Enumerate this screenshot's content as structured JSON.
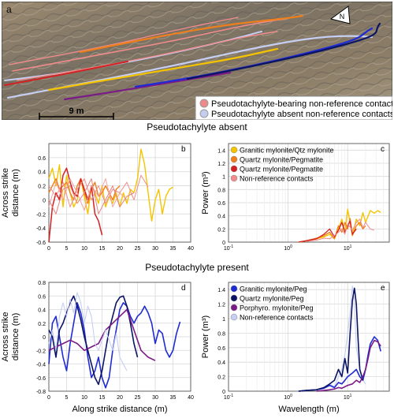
{
  "panel_a": {
    "letter": "a",
    "scale_label": "9 m",
    "legend": [
      {
        "label": "Pseudotachylyte-bearing  non-reference contacts",
        "color": "#ef8a8a"
      },
      {
        "label": "Pseudotachylyte absent non-reference contacts",
        "color": "#c4cdf0"
      }
    ],
    "north_icon": "north-arrow-icon",
    "north_label": "N"
  },
  "captions": {
    "absent": "Pseudotachylyte absent",
    "present": "Pseudotachylyte present"
  },
  "chart_data": [
    {
      "panel": "b",
      "type": "line",
      "xlabel": "",
      "ylabel": "Across strike distance (m)",
      "xlim": [
        0,
        40
      ],
      "ylim": [
        -0.6,
        0.8
      ],
      "xticks": [
        "0",
        "5",
        "10",
        "15",
        "20",
        "25",
        "30",
        "35",
        "40"
      ],
      "yticks": [
        "-0.6",
        "-0.4",
        "-0.2",
        "0",
        "0.2",
        "0.4",
        "0.6"
      ],
      "grid": true,
      "series": [
        {
          "color": "#f5c400",
          "width": 1.4,
          "x": [
            0,
            1,
            2,
            3,
            4,
            5,
            6,
            7,
            8,
            9,
            10,
            11,
            12,
            13,
            14,
            15,
            16,
            17,
            18,
            19,
            20,
            21,
            22,
            23,
            24,
            25,
            26,
            27,
            28,
            29,
            30,
            31,
            32,
            33,
            34,
            35
          ],
          "y": [
            0.3,
            0.45,
            0.2,
            0.5,
            -0.1,
            0.35,
            0.1,
            -0.1,
            0.0,
            0.3,
            0.05,
            -0.2,
            0.2,
            0.1,
            -0.05,
            0.2,
            -0.1,
            0.05,
            -0.05,
            0.1,
            -0.1,
            0.1,
            -0.05,
            0.15,
            0.1,
            0.3,
            0.72,
            0.5,
            0.1,
            -0.3,
            0.0,
            0.15,
            -0.2,
            0.05,
            0.15,
            0.18
          ]
        },
        {
          "color": "#ee7f1d",
          "width": 1.4,
          "x": [
            0,
            1,
            2,
            3,
            4,
            5,
            6,
            7,
            8,
            9,
            10,
            11,
            12,
            13,
            14,
            15,
            16,
            17,
            18,
            19,
            20
          ],
          "y": [
            0.1,
            0.2,
            0.3,
            0.15,
            0.2,
            0.25,
            0.1,
            0.0,
            0.2,
            0.3,
            0.1,
            -0.05,
            0.15,
            0.25,
            0.05,
            0.1,
            0.2,
            0.1,
            0.0,
            0.15,
            0.2
          ]
        },
        {
          "color": "#d42020",
          "width": 1.5,
          "x": [
            0,
            1,
            2,
            3,
            4,
            5,
            6,
            7,
            8,
            9,
            10,
            11,
            12,
            13,
            14,
            15
          ],
          "y": [
            -0.6,
            -0.1,
            0.1,
            0.0,
            0.35,
            0.45,
            0.25,
            0.1,
            0.05,
            0.3,
            0.15,
            0.0,
            0.2,
            -0.2,
            -0.3,
            -0.5
          ]
        },
        {
          "color": "#f08c8c",
          "width": 1.0,
          "x": [
            0,
            2,
            4,
            6,
            8,
            10,
            12,
            14,
            16,
            18,
            20,
            22,
            24,
            26,
            28
          ],
          "y": [
            0.2,
            0.05,
            0.25,
            -0.1,
            0.15,
            0.3,
            0.0,
            0.2,
            -0.05,
            0.15,
            0.1,
            0.25,
            0.0,
            0.35,
            0.18
          ]
        },
        {
          "color": "#f3a3a3",
          "width": 1.0,
          "x": [
            0,
            2,
            4,
            6,
            8,
            10,
            12,
            14,
            16,
            18,
            20,
            22
          ],
          "y": [
            -0.1,
            0.25,
            0.0,
            0.3,
            0.1,
            -0.15,
            0.2,
            0.05,
            0.3,
            -0.1,
            0.1,
            0.0
          ]
        },
        {
          "color": "#e98080",
          "width": 1.0,
          "x": [
            0,
            2,
            4,
            6,
            8,
            10,
            12,
            14,
            16,
            18,
            20,
            22,
            24
          ],
          "y": [
            0.0,
            -0.2,
            0.15,
            0.2,
            -0.05,
            0.1,
            0.3,
            -0.2,
            0.0,
            0.2,
            -0.1,
            0.05,
            0.1
          ]
        }
      ]
    },
    {
      "panel": "c",
      "type": "line",
      "xlabel": "",
      "ylabel": "Power (m³)",
      "xscale": "log",
      "xlim": [
        0.1,
        50
      ],
      "ylim": [
        0,
        1.5
      ],
      "yticks": [
        "0",
        "0.2",
        "0.4",
        "0.6",
        "0.8",
        "1",
        "1.2",
        "1.4"
      ],
      "grid": true,
      "legend": [
        {
          "label": "Granitic mylonite/Qtz mylonite",
          "color": "#f5c400"
        },
        {
          "label": "Quartz mylonite/Pegmatite",
          "color": "#ee7f1d"
        },
        {
          "label": "Quartz mylonite/Pegmatite",
          "color": "#d42020"
        },
        {
          "label": "Non-reference contacts",
          "color": "#f08c8c"
        }
      ],
      "series": [
        {
          "color": "#f5c400",
          "width": 1.4,
          "x": [
            1.5,
            2,
            3,
            4,
            5,
            6,
            7,
            8,
            9,
            10,
            11,
            12,
            14,
            16,
            18,
            20,
            24,
            28,
            32,
            36
          ],
          "y": [
            0,
            0.02,
            0.05,
            0.08,
            0.12,
            0.05,
            0.2,
            0.35,
            0.15,
            0.5,
            0.3,
            0.1,
            0.35,
            0.25,
            0.45,
            0.3,
            0.48,
            0.44,
            0.48,
            0.45
          ]
        },
        {
          "color": "#ee7f1d",
          "width": 1.3,
          "x": [
            1.5,
            2,
            3,
            4,
            5,
            6,
            7,
            8,
            9,
            10,
            11,
            12,
            14,
            16,
            18,
            20
          ],
          "y": [
            0,
            0.02,
            0.06,
            0.1,
            0.15,
            0.05,
            0.25,
            0.15,
            0.3,
            0.2,
            0.36,
            0.1,
            0.25,
            0.3,
            0.2,
            0.25
          ]
        },
        {
          "color": "#d42020",
          "width": 1.3,
          "x": [
            1.5,
            2,
            3,
            4,
            5,
            6,
            7,
            8,
            9,
            10,
            11,
            12,
            14
          ],
          "y": [
            0,
            0.02,
            0.05,
            0.12,
            0.2,
            0.08,
            0.18,
            0.3,
            0.15,
            0.25,
            0.32,
            0.12,
            0.2
          ]
        },
        {
          "color": "#f08c8c",
          "width": 1.0,
          "x": [
            2,
            3,
            4,
            5,
            6,
            7,
            8,
            9,
            10,
            12,
            14,
            16,
            18,
            20,
            24,
            28
          ],
          "y": [
            0.01,
            0.03,
            0.06,
            0.05,
            0.1,
            0.15,
            0.2,
            0.12,
            0.28,
            0.18,
            0.3,
            0.35,
            0.22,
            0.3,
            0.2,
            0.18
          ]
        }
      ]
    },
    {
      "panel": "d",
      "type": "line",
      "xlabel": "Along strike distance (m)",
      "ylabel": "Across strike distance (m)",
      "xlim": [
        0,
        40
      ],
      "ylim": [
        -0.8,
        0.8
      ],
      "xticks": [
        "0",
        "5",
        "10",
        "15",
        "20",
        "25",
        "30",
        "35",
        "40"
      ],
      "yticks": [
        "-0.8",
        "-0.6",
        "-0.4",
        "-0.2",
        "0",
        "0.2",
        "0.4",
        "0.6",
        "0.8"
      ],
      "grid": true,
      "series": [
        {
          "color": "#1f2bd4",
          "width": 1.6,
          "x": [
            0,
            1,
            2,
            3,
            4,
            5,
            6,
            7,
            8,
            9,
            10,
            11,
            12,
            13,
            14,
            15,
            16,
            17,
            18,
            19,
            20,
            21,
            22,
            23,
            24,
            25,
            26,
            27,
            28,
            29,
            30,
            31,
            32,
            33,
            34,
            35,
            36,
            37
          ],
          "y": [
            -0.4,
            0.2,
            0.3,
            0.0,
            -0.3,
            -0.5,
            -0.1,
            0.2,
            0.5,
            0.35,
            0.1,
            -0.3,
            -0.6,
            -0.5,
            -0.3,
            -0.6,
            -0.75,
            -0.6,
            -0.2,
            0.1,
            0.4,
            0.5,
            0.45,
            0.3,
            0.2,
            0.3,
            0.35,
            0.45,
            0.35,
            0.2,
            -0.1,
            0.1,
            0.05,
            -0.2,
            -0.3,
            -0.2,
            0.05,
            0.22
          ]
        },
        {
          "color": "#0b1462",
          "width": 1.6,
          "x": [
            0,
            1,
            2,
            3,
            4,
            5,
            6,
            7,
            8,
            9,
            10,
            11,
            12,
            13,
            14,
            15,
            16,
            17,
            18,
            19,
            20,
            21,
            22,
            23,
            24,
            25
          ],
          "y": [
            0.1,
            0.0,
            -0.3,
            0.1,
            0.2,
            0.35,
            0.5,
            0.6,
            0.45,
            0.25,
            0.0,
            -0.2,
            -0.4,
            -0.6,
            -0.7,
            -0.5,
            -0.2,
            0.1,
            0.3,
            0.5,
            0.58,
            0.6,
            0.45,
            0.2,
            -0.1,
            -0.3
          ]
        },
        {
          "color": "#7a1a86",
          "width": 1.6,
          "x": [
            0,
            2,
            4,
            6,
            8,
            10,
            12,
            14,
            16,
            18,
            20,
            22,
            24,
            26,
            28,
            30
          ],
          "y": [
            -0.2,
            -0.15,
            -0.1,
            -0.05,
            -0.1,
            -0.2,
            -0.15,
            -0.1,
            0.1,
            0.2,
            0.3,
            0.4,
            0.1,
            -0.2,
            -0.3,
            -0.35
          ]
        },
        {
          "color": "#c6cff3",
          "width": 1.1,
          "x": [
            0,
            1,
            2,
            3,
            4,
            5,
            6,
            7,
            8,
            9,
            10,
            11,
            12,
            13,
            14,
            15,
            16,
            17,
            18,
            19,
            20,
            21,
            22
          ],
          "y": [
            -0.1,
            0.1,
            -0.2,
            0.3,
            0.5,
            0.3,
            0.55,
            0.35,
            0.65,
            0.5,
            0.2,
            0.45,
            0.3,
            -0.1,
            -0.2,
            -0.05,
            0.1,
            -0.05,
            -0.2,
            0.05,
            -0.3,
            -0.4,
            -0.5
          ]
        }
      ]
    },
    {
      "panel": "e",
      "type": "line",
      "xlabel": "Wavelength (m)",
      "ylabel": "Power (m³)",
      "xscale": "log",
      "xlim": [
        0.1,
        50
      ],
      "ylim": [
        0,
        1.5
      ],
      "yticks": [
        "0",
        "0.2",
        "0.4",
        "0.6",
        "0.8",
        "1",
        "1.2",
        "1.4"
      ],
      "grid": true,
      "legend": [
        {
          "label": "Granitic mylonite/Peg",
          "color": "#1f2bd4"
        },
        {
          "label": "Quartz mylonite/Peg",
          "color": "#0b1462"
        },
        {
          "label": "Porphyro. mylonite/Peg",
          "color": "#7a1a86"
        },
        {
          "label": "Non-reference contacts",
          "color": "#c6cff3"
        }
      ],
      "series": [
        {
          "color": "#c6cff3",
          "width": 1.1,
          "x": [
            1.5,
            2,
            3,
            4,
            5,
            6,
            7,
            8,
            9,
            10,
            11,
            12,
            13,
            14,
            16,
            18,
            20
          ],
          "y": [
            0,
            0.01,
            0.02,
            0.05,
            0.1,
            0.06,
            0.2,
            0.3,
            0.5,
            0.8,
            1.1,
            1.45,
            1.2,
            0.6,
            0.3,
            0.15,
            0.1
          ]
        },
        {
          "color": "#1f2bd4",
          "width": 1.6,
          "x": [
            1.5,
            2,
            3,
            4,
            5,
            6,
            7,
            8,
            9,
            10,
            12,
            14,
            16,
            18,
            20,
            22,
            24,
            28,
            32,
            36
          ],
          "y": [
            0,
            0.01,
            0.02,
            0.04,
            0.08,
            0.05,
            0.12,
            0.1,
            0.15,
            0.2,
            0.25,
            0.3,
            0.2,
            0.15,
            0.3,
            0.5,
            0.65,
            0.75,
            0.7,
            0.55
          ]
        },
        {
          "color": "#0b1462",
          "width": 1.6,
          "x": [
            1.5,
            2,
            3,
            4,
            5,
            6,
            7,
            8,
            9,
            10,
            11,
            12,
            13,
            14,
            15,
            16,
            18
          ],
          "y": [
            0,
            0.01,
            0.02,
            0.05,
            0.1,
            0.15,
            0.3,
            0.2,
            0.45,
            0.25,
            0.8,
            1.25,
            1.42,
            1.2,
            0.7,
            0.3,
            0.15
          ]
        },
        {
          "color": "#7a1a86",
          "width": 1.6,
          "x": [
            3,
            4,
            5,
            6,
            7,
            8,
            10,
            12,
            14,
            16,
            18,
            20,
            22,
            24,
            28,
            32,
            36
          ],
          "y": [
            0,
            0.01,
            0.02,
            0.03,
            0.05,
            0.04,
            0.08,
            0.1,
            0.15,
            0.12,
            0.2,
            0.3,
            0.45,
            0.6,
            0.7,
            0.68,
            0.62
          ]
        }
      ]
    }
  ]
}
